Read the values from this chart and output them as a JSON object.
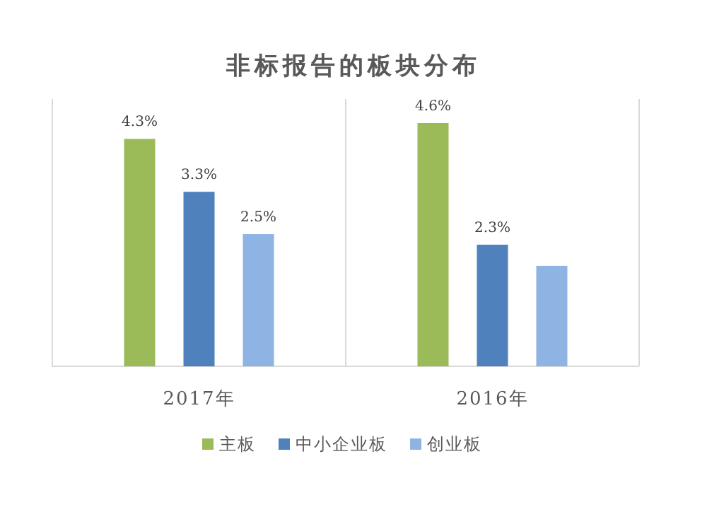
{
  "chart_data": {
    "type": "bar",
    "title": "非标报告的板块分布",
    "categories": [
      "2017年",
      "2016年"
    ],
    "series": [
      {
        "name": "主板",
        "color": "#9bbb59",
        "values": [
          4.3,
          4.6
        ],
        "value_labels": [
          "4.3%",
          "4.6%"
        ]
      },
      {
        "name": "中小企业板",
        "color": "#4f81bd",
        "values": [
          3.3,
          2.3
        ],
        "value_labels": [
          "3.3%",
          "2.3%"
        ]
      },
      {
        "name": "创业板",
        "color": "#8eb4e3",
        "values": [
          2.5,
          1.9
        ],
        "value_labels": [
          "2.5%",
          null
        ]
      }
    ],
    "grid": "x",
    "legend": "bottom"
  }
}
